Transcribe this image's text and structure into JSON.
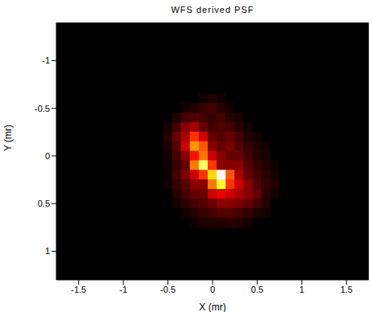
{
  "chart_data": {
    "type": "heatmap",
    "title": "WFS derived PSF",
    "x_label": "X (mr)",
    "y_label": "Y (mr)",
    "xlim": [
      -1.75,
      1.75
    ],
    "ylim": [
      -1.4,
      1.3
    ],
    "xticks": [
      -1.5,
      -1,
      -0.5,
      0,
      0.5,
      1,
      1.5
    ],
    "yticks": [
      -1,
      -0.5,
      0,
      0.5,
      1
    ],
    "color": "hot",
    "zlim": [
      0,
      1
    ],
    "x": [
      -0.6,
      -0.5,
      -0.4,
      -0.3,
      -0.2,
      -0.1,
      0,
      0.1,
      0.2,
      0.3,
      0.4,
      0.5,
      0.6,
      0.7,
      0.8
    ],
    "y": [
      -0.6,
      -0.5,
      -0.4,
      -0.3,
      -0.2,
      -0.1,
      0,
      0.1,
      0.2,
      0.3,
      0.4,
      0.5,
      0.6,
      0.7
    ],
    "z": [
      [
        0,
        0,
        0,
        0,
        0,
        0.03,
        0.05,
        0.03,
        0,
        0,
        0,
        0,
        0,
        0,
        0
      ],
      [
        0,
        0,
        0,
        0.03,
        0.05,
        0.08,
        0.1,
        0.06,
        0.03,
        0,
        0,
        0,
        0,
        0,
        0
      ],
      [
        0,
        0,
        0.05,
        0.1,
        0.12,
        0.1,
        0.08,
        0.1,
        0.06,
        0.04,
        0,
        0,
        0,
        0,
        0
      ],
      [
        0,
        0.04,
        0.1,
        0.2,
        0.25,
        0.15,
        0.1,
        0.12,
        0.1,
        0.06,
        0.03,
        0,
        0,
        0,
        0
      ],
      [
        0,
        0.05,
        0.15,
        0.25,
        0.45,
        0.3,
        0.15,
        0.12,
        0.15,
        0.1,
        0.05,
        0.03,
        0,
        0,
        0
      ],
      [
        0,
        0.04,
        0.12,
        0.3,
        0.6,
        0.5,
        0.2,
        0.15,
        0.18,
        0.12,
        0.08,
        0.05,
        0.03,
        0,
        0
      ],
      [
        0,
        0.03,
        0.1,
        0.2,
        0.4,
        0.55,
        0.3,
        0.2,
        0.15,
        0.15,
        0.1,
        0.06,
        0.04,
        0,
        0
      ],
      [
        0,
        0.02,
        0.08,
        0.15,
        0.55,
        0.85,
        0.45,
        0.2,
        0.2,
        0.2,
        0.12,
        0.08,
        0.05,
        0.02,
        0
      ],
      [
        0,
        0.02,
        0.1,
        0.18,
        0.3,
        0.45,
        0.7,
        1.0,
        0.5,
        0.25,
        0.15,
        0.1,
        0.06,
        0.03,
        0
      ],
      [
        0,
        0.03,
        0.08,
        0.12,
        0.2,
        0.2,
        0.55,
        0.8,
        0.45,
        0.3,
        0.2,
        0.12,
        0.08,
        0.04,
        0
      ],
      [
        0,
        0,
        0.05,
        0.1,
        0.15,
        0.15,
        0.3,
        0.35,
        0.3,
        0.25,
        0.2,
        0.15,
        0.06,
        0.03,
        0
      ],
      [
        0,
        0,
        0.03,
        0.06,
        0.1,
        0.12,
        0.15,
        0.2,
        0.2,
        0.18,
        0.15,
        0.1,
        0.05,
        0,
        0
      ],
      [
        0,
        0,
        0,
        0.03,
        0.05,
        0.08,
        0.1,
        0.12,
        0.12,
        0.1,
        0.08,
        0.05,
        0.03,
        0,
        0
      ],
      [
        0,
        0,
        0,
        0,
        0.02,
        0.04,
        0.05,
        0.05,
        0.06,
        0.05,
        0.03,
        0,
        0,
        0,
        0
      ]
    ]
  }
}
